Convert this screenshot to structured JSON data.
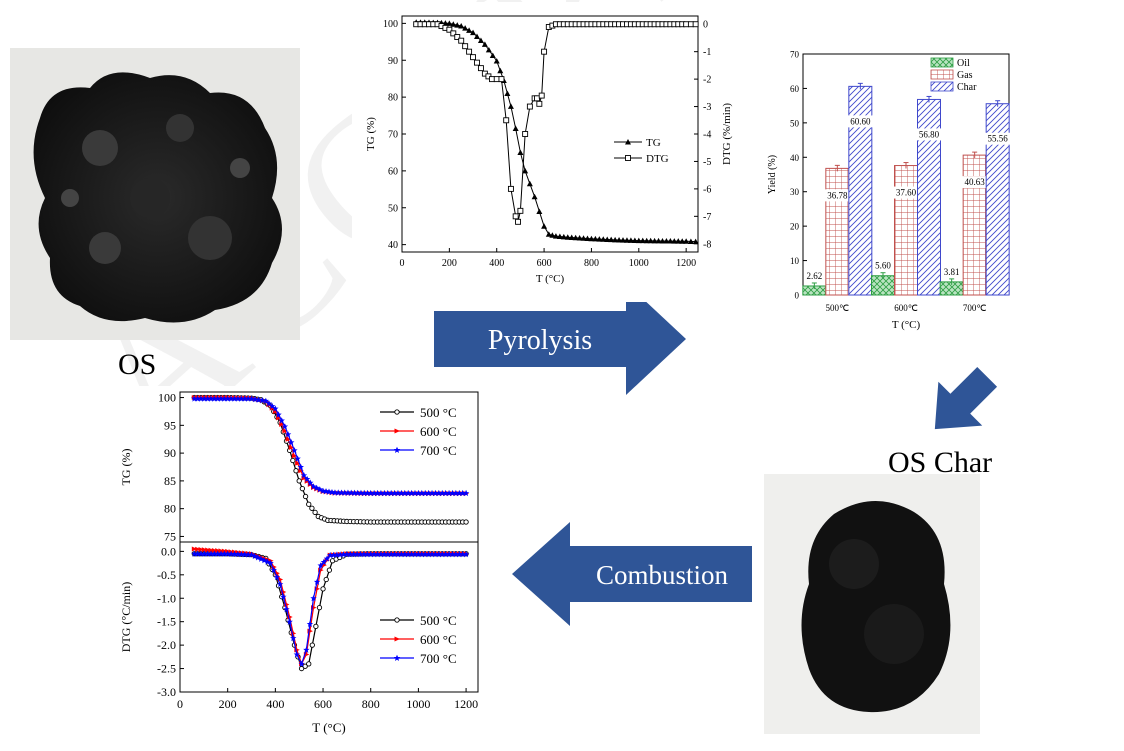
{
  "watermark": "ACCEPTED MANUSCRIPT",
  "labels": {
    "os": "OS",
    "os_char": "OS Char",
    "pyrolysis": "Pyrolysis",
    "combustion": "Combustion"
  },
  "colors": {
    "arrow": "#2f5597",
    "oil": "#2e9e44",
    "gas": "#c0504d",
    "char": "#3f48cc",
    "series_500": "#000000",
    "series_600": "#ff0000",
    "series_700": "#0000ff"
  },
  "chart_data": [
    {
      "type": "line",
      "xlabel": "T (°C)",
      "ylabel": "TG (%)",
      "y2label": "DTG (%/min)",
      "xlim": [
        0,
        1250
      ],
      "ylim": [
        38,
        102
      ],
      "y2lim": [
        -8.3,
        0.3
      ],
      "xticks": [
        0,
        200,
        400,
        600,
        800,
        1000,
        1200
      ],
      "yticks": [
        40,
        50,
        60,
        70,
        80,
        90,
        100
      ],
      "y2ticks": [
        0,
        -1,
        -2,
        -3,
        -4,
        -5,
        -6,
        -7,
        -8
      ],
      "legend": "center-right",
      "series": [
        {
          "name": "TG",
          "axis": "left",
          "x": [
            60,
            150,
            200,
            250,
            300,
            350,
            400,
            430,
            460,
            480,
            500,
            520,
            540,
            560,
            580,
            600,
            620,
            650,
            700,
            800,
            900,
            1000,
            1100,
            1200,
            1240
          ],
          "y": [
            100.3,
            100.2,
            100,
            99.3,
            97.5,
            94.3,
            89.8,
            84.5,
            77.5,
            71.5,
            65,
            60,
            56.5,
            53,
            49,
            45,
            42.8,
            42.3,
            42,
            41.6,
            41.3,
            41.1,
            41.0,
            40.9,
            40.8
          ]
        },
        {
          "name": "DTG",
          "axis": "right",
          "x": [
            60,
            150,
            200,
            250,
            300,
            350,
            380,
            420,
            440,
            460,
            480,
            490,
            500,
            520,
            540,
            560,
            570,
            580,
            590,
            600,
            620,
            650,
            700,
            800,
            900,
            1000,
            1100,
            1200,
            1240
          ],
          "y": [
            0,
            0,
            -0.2,
            -0.6,
            -1.2,
            -1.8,
            -2.0,
            -2.0,
            -3.5,
            -6.0,
            -7.0,
            -7.2,
            -6.8,
            -4.0,
            -3.0,
            -2.7,
            -2.7,
            -2.9,
            -2.6,
            -1.0,
            -0.1,
            0.0,
            0.0,
            0.0,
            0.0,
            0.0,
            0.0,
            0.0,
            0.0
          ]
        }
      ]
    },
    {
      "type": "bar",
      "xlabel": "T (°C)",
      "ylabel": "Yield (%)",
      "ylim": [
        0,
        70
      ],
      "yticks": [
        0,
        10,
        20,
        30,
        40,
        50,
        60,
        70
      ],
      "categories": [
        "500℃",
        "600℃",
        "700℃"
      ],
      "legend": "top-right",
      "series": [
        {
          "name": "Oil",
          "values": [
            2.62,
            5.6,
            3.81
          ],
          "labels": [
            "2.62",
            "5.60",
            "3.81"
          ]
        },
        {
          "name": "Gas",
          "values": [
            36.78,
            37.6,
            40.63
          ],
          "labels": [
            "36.78",
            "37.60",
            "40.63"
          ]
        },
        {
          "name": "Char",
          "values": [
            60.6,
            56.8,
            55.56
          ],
          "labels": [
            "60.60",
            "56.80",
            "55.56"
          ]
        }
      ]
    },
    {
      "type": "line",
      "xlabel": "T (°C)",
      "top_panel": {
        "ylabel": "TG (%)",
        "ylim": [
          74,
          101
        ],
        "yticks": [
          75,
          80,
          85,
          90,
          95,
          100
        ],
        "legend": "top-right",
        "series": [
          {
            "name": "500 °C",
            "x": [
              60,
              200,
              300,
              340,
              380,
              420,
              460,
              500,
              540,
              580,
              620,
              700,
              800,
              1000,
              1200
            ],
            "y": [
              100,
              100,
              99.9,
              99.6,
              98.5,
              95.5,
              90.5,
              85,
              80.8,
              78.6,
              77.9,
              77.7,
              77.6,
              77.6,
              77.6
            ]
          },
          {
            "name": "600 °C",
            "x": [
              60,
              200,
              300,
              360,
              400,
              440,
              480,
              520,
              560,
              600,
              650,
              800,
              1000,
              1200
            ],
            "y": [
              100,
              100,
              99.9,
              99.3,
              97.5,
              94,
              89.5,
              85.5,
              83.8,
              83.1,
              82.8,
              82.7,
              82.7,
              82.7
            ]
          },
          {
            "name": "700 °C",
            "x": [
              60,
              200,
              300,
              360,
              400,
              440,
              480,
              520,
              560,
              600,
              650,
              800,
              1000,
              1200
            ],
            "y": [
              99.8,
              99.8,
              99.8,
              99.4,
              98,
              94.8,
              90.5,
              86,
              84,
              83.2,
              82.9,
              82.8,
              82.8,
              82.8
            ]
          }
        ]
      },
      "bottom_panel": {
        "ylabel": "DTG (°C/min)",
        "ylim": [
          -3.0,
          0.2
        ],
        "yticks": [
          0.0,
          -0.5,
          -1.0,
          -1.5,
          -2.0,
          -2.5,
          -3.0
        ],
        "xticks": [
          0,
          200,
          400,
          600,
          800,
          1000,
          1200
        ],
        "xlim": [
          0,
          1250
        ],
        "legend": "center-right",
        "series": [
          {
            "name": "500 °C",
            "x": [
              60,
              200,
              300,
              360,
              400,
              440,
              480,
              510,
              540,
              570,
              600,
              640,
              700,
              800,
              1000,
              1200
            ],
            "y": [
              -0.05,
              -0.05,
              -0.07,
              -0.15,
              -0.5,
              -1.2,
              -2.0,
              -2.5,
              -2.4,
              -1.6,
              -0.8,
              -0.2,
              -0.06,
              -0.05,
              -0.05,
              -0.05
            ]
          },
          {
            "name": "600 °C",
            "x": [
              60,
              200,
              300,
              380,
              420,
              460,
              490,
              510,
              530,
              560,
              590,
              630,
              700,
              800,
              1000,
              1200
            ],
            "y": [
              0.05,
              0.0,
              -0.05,
              -0.2,
              -0.6,
              -1.4,
              -2.1,
              -2.4,
              -2.2,
              -1.2,
              -0.4,
              -0.08,
              -0.05,
              -0.05,
              -0.05,
              -0.05
            ]
          },
          {
            "name": "700 °C",
            "x": [
              60,
              200,
              300,
              380,
              420,
              460,
              490,
              510,
              530,
              560,
              590,
              630,
              700,
              800,
              1000,
              1200
            ],
            "y": [
              -0.05,
              -0.05,
              -0.07,
              -0.25,
              -0.7,
              -1.5,
              -2.2,
              -2.4,
              -2.1,
              -1.0,
              -0.3,
              -0.08,
              -0.06,
              -0.06,
              -0.06,
              -0.06
            ]
          }
        ]
      }
    }
  ]
}
